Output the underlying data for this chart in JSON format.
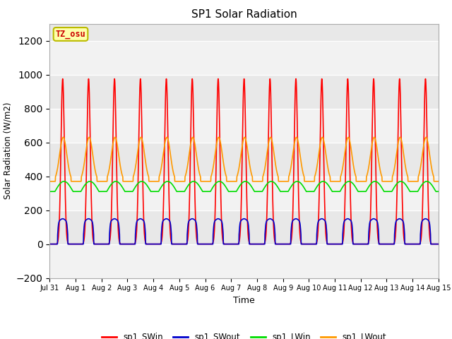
{
  "title": "SP1 Solar Radiation",
  "xlabel": "Time",
  "ylabel": "Solar Radiation (W/m2)",
  "xlim_days": [
    0,
    15
  ],
  "ylim": [
    -200,
    1300
  ],
  "yticks": [
    -200,
    0,
    200,
    400,
    600,
    800,
    1000,
    1200
  ],
  "xtick_labels": [
    "Jul 31",
    "Aug 1",
    "Aug 2",
    "Aug 3",
    "Aug 4",
    "Aug 5",
    "Aug 6",
    "Aug 7",
    "Aug 8",
    "Aug 9",
    "Aug 10",
    "Aug 11",
    "Aug 12",
    "Aug 13",
    "Aug 14",
    "Aug 15"
  ],
  "xtick_positions": [
    0,
    1,
    2,
    3,
    4,
    5,
    6,
    7,
    8,
    9,
    10,
    11,
    12,
    13,
    14,
    15
  ],
  "colors": {
    "SWin": "#ff0000",
    "SWout": "#0000cc",
    "LWin": "#00dd00",
    "LWout": "#ff9900"
  },
  "legend_labels": [
    "sp1_SWin",
    "sp1_SWout",
    "sp1_LWin",
    "sp1_LWout"
  ],
  "background_color": "#e8e8e8",
  "plot_bg": "#e0e0e0",
  "tz_label": "TZ_osu",
  "tz_box_facecolor": "#ffffaa",
  "tz_box_edgecolor": "#bbbb00",
  "tz_text_color": "#cc0000",
  "grid_color": "#d0d0d0",
  "SWin_peak": 975,
  "SWout_peak": 130,
  "LWin_base": 310,
  "LWin_amplitude": 60,
  "LWout_base": 370,
  "LWout_peak": 630,
  "n_days": 15,
  "samples_per_hour": 6
}
